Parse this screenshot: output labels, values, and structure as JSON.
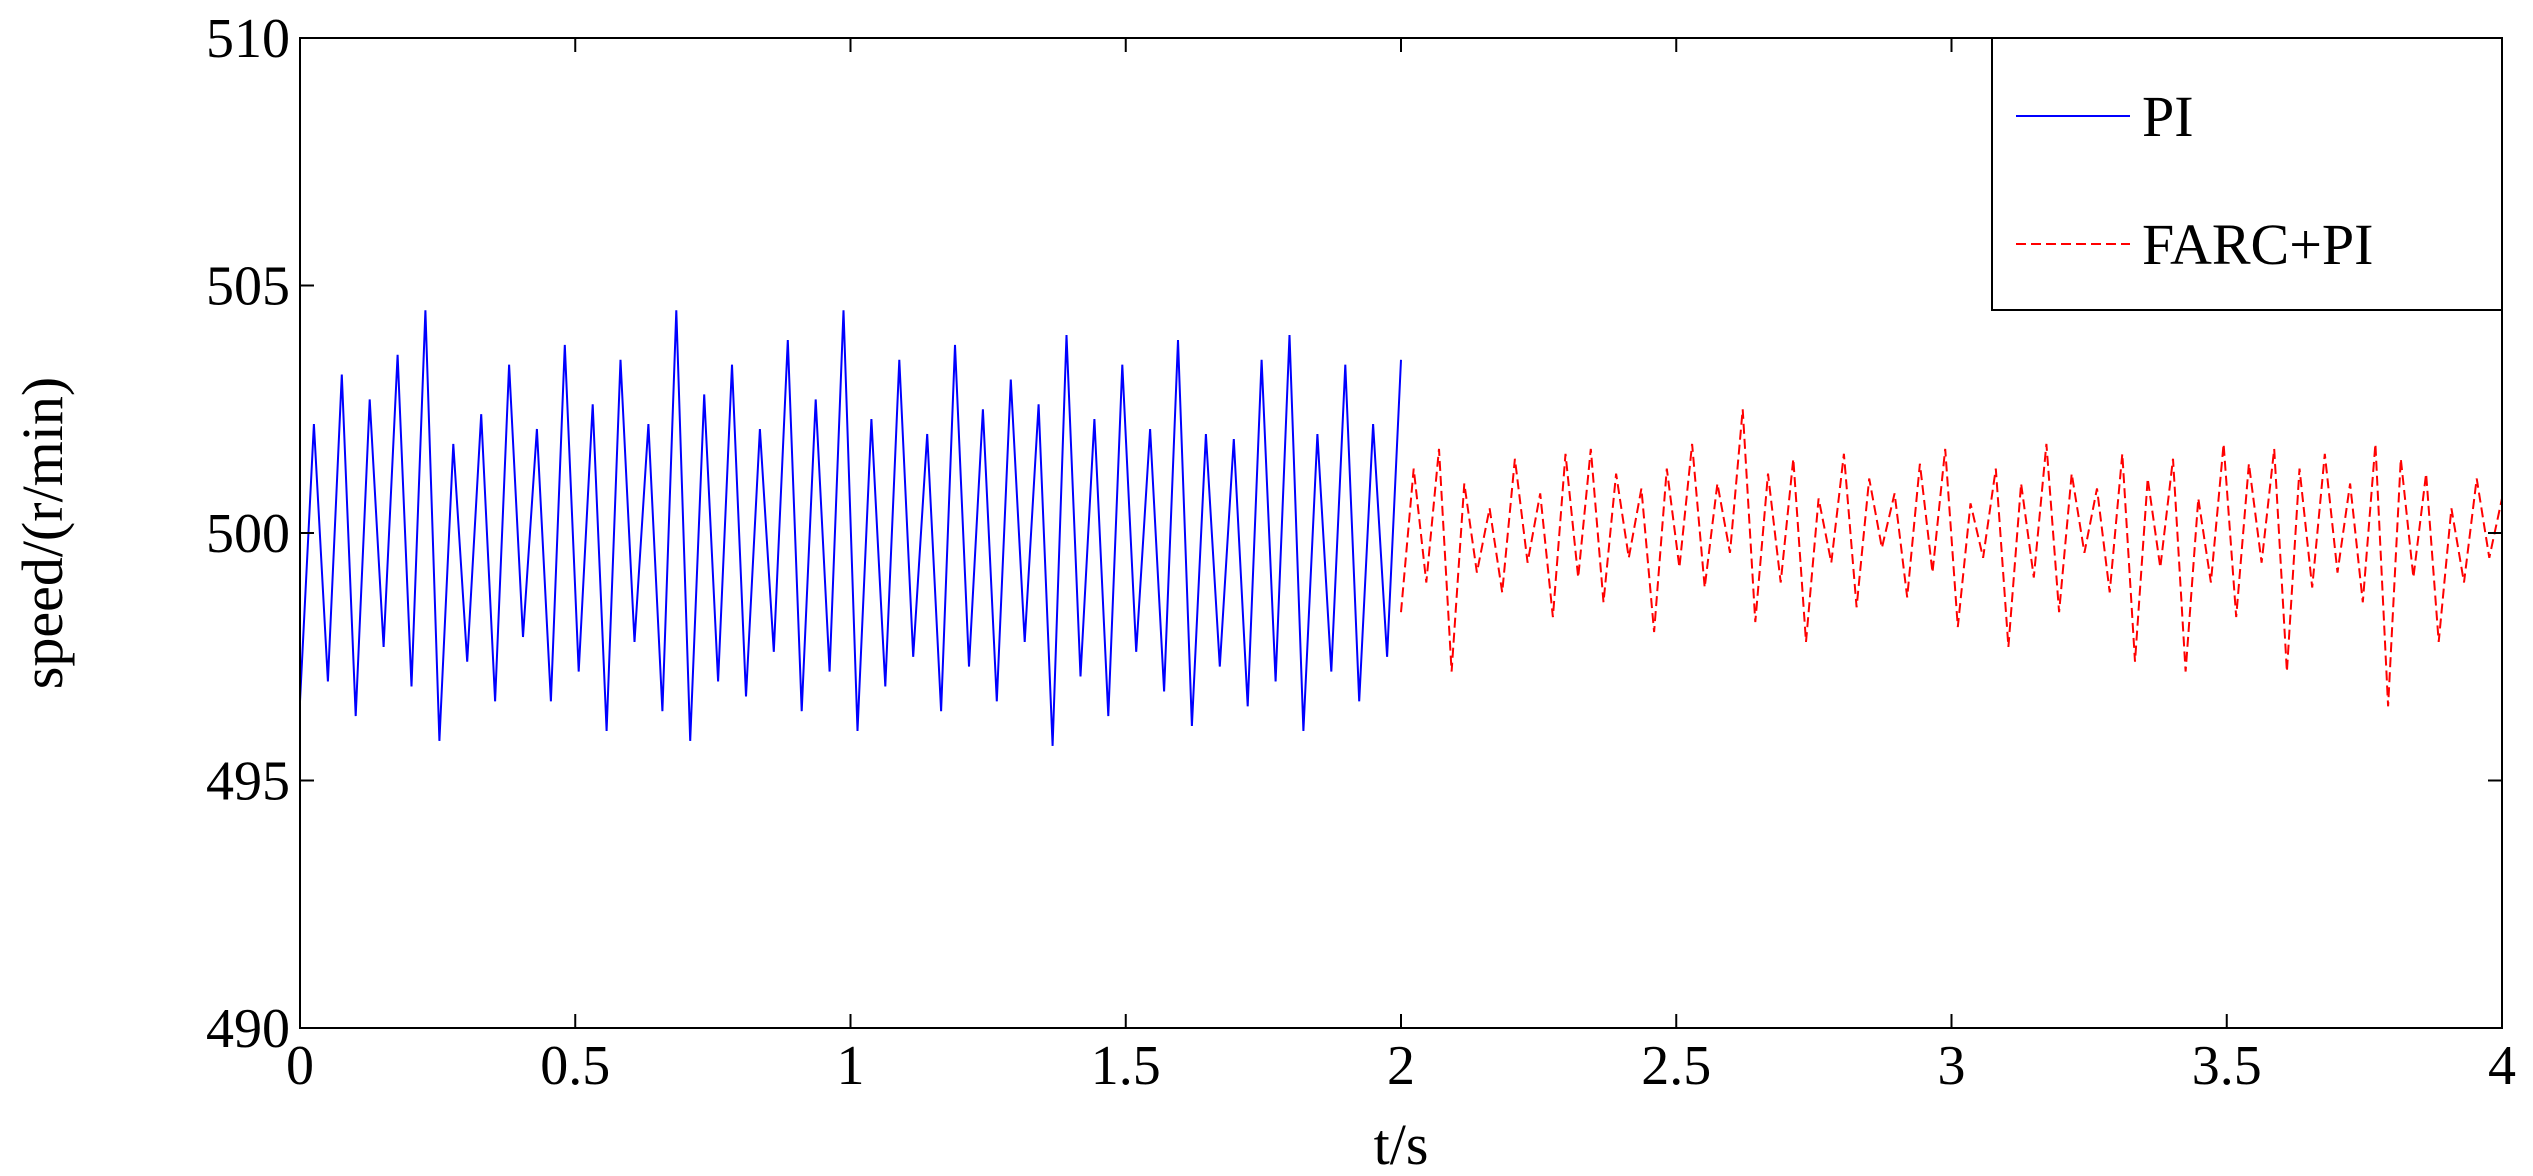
{
  "chart_data": {
    "type": "line",
    "title": "",
    "xlabel": "t/s",
    "ylabel": "speed/(r/min)",
    "xlim": [
      0,
      4
    ],
    "ylim": [
      490,
      510
    ],
    "x_ticks": [
      0,
      0.5,
      1,
      1.5,
      2,
      2.5,
      3,
      3.5,
      4
    ],
    "x_tick_labels": [
      "0",
      "0.5",
      "1",
      "1.5",
      "2",
      "2.5",
      "3",
      "3.5",
      "4"
    ],
    "y_ticks": [
      490,
      495,
      500,
      505,
      510
    ],
    "y_tick_labels": [
      "490",
      "495",
      "500",
      "505",
      "510"
    ],
    "grid": false,
    "legend_position": "top-right",
    "series": [
      {
        "name": "PI",
        "color": "#0000ff",
        "style": "solid",
        "x_range": [
          0,
          2
        ],
        "mean": 499.8,
        "min": 495.7,
        "max": 504.5,
        "values": [
          496.6,
          502.2,
          497.0,
          503.2,
          496.3,
          502.7,
          497.7,
          503.6,
          496.9,
          504.5,
          495.8,
          501.8,
          497.4,
          502.4,
          496.6,
          503.4,
          497.9,
          502.1,
          496.6,
          503.8,
          497.2,
          502.6,
          496.0,
          503.5,
          497.8,
          502.2,
          496.4,
          504.5,
          495.8,
          502.8,
          497.0,
          503.4,
          496.7,
          502.1,
          497.6,
          503.9,
          496.4,
          502.7,
          497.2,
          504.5,
          496.0,
          502.3,
          496.9,
          503.5,
          497.5,
          502.0,
          496.4,
          503.8,
          497.3,
          502.5,
          496.6,
          503.1,
          497.8,
          502.6,
          495.7,
          504.0,
          497.1,
          502.3,
          496.3,
          503.4,
          497.6,
          502.1,
          496.8,
          503.9,
          496.1,
          502.0,
          497.3,
          501.9,
          496.5,
          503.5,
          497.0,
          504.0,
          496.0,
          502.0,
          497.2,
          503.4,
          496.6,
          502.2,
          497.5,
          503.5
        ]
      },
      {
        "name": "FARC+PI",
        "color": "#ff0000",
        "style": "dashed",
        "x_range": [
          2,
          4
        ],
        "mean": 499.9,
        "min": 496.5,
        "max": 502.5,
        "values": [
          498.4,
          501.3,
          499.0,
          501.7,
          497.2,
          501.0,
          499.2,
          500.5,
          498.8,
          501.5,
          499.4,
          500.8,
          498.3,
          501.6,
          499.1,
          501.7,
          498.6,
          501.2,
          499.5,
          500.9,
          498.0,
          501.3,
          499.3,
          501.8,
          498.9,
          501.0,
          499.6,
          502.5,
          498.2,
          501.2,
          499.0,
          501.5,
          497.8,
          500.7,
          499.4,
          501.6,
          498.5,
          501.1,
          499.7,
          500.8,
          498.7,
          501.4,
          499.2,
          501.7,
          498.1,
          500.6,
          499.5,
          501.3,
          497.7,
          501.0,
          499.1,
          501.8,
          498.4,
          501.2,
          499.6,
          500.9,
          498.8,
          501.6,
          497.4,
          501.1,
          499.3,
          501.5,
          497.2,
          500.7,
          499.0,
          501.8,
          498.3,
          501.4,
          499.4,
          501.7,
          497.2,
          501.3,
          498.9,
          501.6,
          499.2,
          501.0,
          498.6,
          501.8,
          496.5,
          501.5,
          499.1,
          501.2,
          497.8,
          500.5,
          499.0,
          501.1,
          499.5,
          500.7
        ]
      }
    ]
  }
}
